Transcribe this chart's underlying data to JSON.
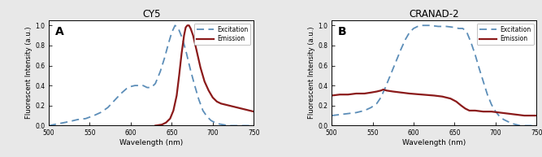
{
  "panel_A": {
    "title": "CY5",
    "label": "A",
    "xlabel": "Wavelength (nm)",
    "ylabel": "Fluorescent Intensity (a.u.)",
    "xlim": [
      500,
      750
    ],
    "ylim": [
      0,
      1.05
    ],
    "yticks": [
      0,
      0.2,
      0.4,
      0.6,
      0.8,
      1.0
    ],
    "xticks": [
      500,
      550,
      600,
      650,
      700,
      750
    ],
    "excitation_color": "#5B8DB8",
    "emission_color": "#8B1A1A",
    "excitation_points": [
      [
        500,
        0.0
      ],
      [
        525,
        0.04
      ],
      [
        535,
        0.06
      ],
      [
        545,
        0.07
      ],
      [
        555,
        0.1
      ],
      [
        563,
        0.13
      ],
      [
        572,
        0.18
      ],
      [
        580,
        0.25
      ],
      [
        588,
        0.32
      ],
      [
        595,
        0.37
      ],
      [
        600,
        0.39
      ],
      [
        605,
        0.4
      ],
      [
        610,
        0.4
      ],
      [
        615,
        0.4
      ],
      [
        620,
        0.38
      ],
      [
        625,
        0.38
      ],
      [
        630,
        0.42
      ],
      [
        636,
        0.54
      ],
      [
        641,
        0.67
      ],
      [
        646,
        0.82
      ],
      [
        650,
        0.93
      ],
      [
        654,
        1.0
      ],
      [
        658,
        0.97
      ],
      [
        663,
        0.87
      ],
      [
        668,
        0.72
      ],
      [
        673,
        0.55
      ],
      [
        678,
        0.4
      ],
      [
        683,
        0.26
      ],
      [
        688,
        0.15
      ],
      [
        693,
        0.09
      ],
      [
        698,
        0.05
      ],
      [
        705,
        0.02
      ],
      [
        712,
        0.01
      ],
      [
        720,
        0.0
      ],
      [
        750,
        0.0
      ]
    ],
    "emission_points": [
      [
        630,
        0.0
      ],
      [
        638,
        0.01
      ],
      [
        643,
        0.03
      ],
      [
        648,
        0.07
      ],
      [
        652,
        0.15
      ],
      [
        656,
        0.3
      ],
      [
        659,
        0.5
      ],
      [
        662,
        0.72
      ],
      [
        665,
        0.9
      ],
      [
        667,
        0.98
      ],
      [
        669,
        1.0
      ],
      [
        671,
        1.0
      ],
      [
        673,
        0.97
      ],
      [
        676,
        0.9
      ],
      [
        680,
        0.76
      ],
      [
        685,
        0.58
      ],
      [
        690,
        0.44
      ],
      [
        695,
        0.35
      ],
      [
        700,
        0.28
      ],
      [
        705,
        0.24
      ],
      [
        710,
        0.22
      ],
      [
        715,
        0.21
      ],
      [
        720,
        0.2
      ],
      [
        725,
        0.19
      ],
      [
        730,
        0.18
      ],
      [
        735,
        0.17
      ],
      [
        740,
        0.16
      ],
      [
        745,
        0.15
      ],
      [
        750,
        0.14
      ]
    ]
  },
  "panel_B": {
    "title": "CRANAD-2",
    "label": "B",
    "xlabel": "Wavelength (nm)",
    "ylabel": "Fluorescent Intensity (a.u.)",
    "xlim": [
      500,
      750
    ],
    "ylim": [
      0,
      1.05
    ],
    "yticks": [
      0,
      0.2,
      0.4,
      0.6,
      0.8,
      1.0
    ],
    "xticks": [
      500,
      550,
      600,
      650,
      700,
      750
    ],
    "excitation_color": "#5B8DB8",
    "emission_color": "#8B1A1A",
    "excitation_points": [
      [
        500,
        0.1
      ],
      [
        510,
        0.11
      ],
      [
        520,
        0.12
      ],
      [
        530,
        0.13
      ],
      [
        540,
        0.15
      ],
      [
        548,
        0.18
      ],
      [
        555,
        0.22
      ],
      [
        560,
        0.28
      ],
      [
        565,
        0.37
      ],
      [
        570,
        0.47
      ],
      [
        575,
        0.57
      ],
      [
        580,
        0.67
      ],
      [
        585,
        0.77
      ],
      [
        590,
        0.86
      ],
      [
        595,
        0.93
      ],
      [
        600,
        0.97
      ],
      [
        605,
        0.99
      ],
      [
        610,
        1.0
      ],
      [
        620,
        1.0
      ],
      [
        630,
        0.99
      ],
      [
        640,
        0.99
      ],
      [
        650,
        0.98
      ],
      [
        655,
        0.97
      ],
      [
        660,
        0.97
      ],
      [
        665,
        0.93
      ],
      [
        670,
        0.83
      ],
      [
        675,
        0.71
      ],
      [
        680,
        0.57
      ],
      [
        685,
        0.44
      ],
      [
        690,
        0.31
      ],
      [
        695,
        0.21
      ],
      [
        700,
        0.14
      ],
      [
        705,
        0.09
      ],
      [
        710,
        0.06
      ],
      [
        715,
        0.04
      ],
      [
        720,
        0.02
      ],
      [
        725,
        0.01
      ],
      [
        730,
        0.0
      ],
      [
        750,
        0.0
      ]
    ],
    "emission_points": [
      [
        500,
        0.3
      ],
      [
        510,
        0.31
      ],
      [
        520,
        0.31
      ],
      [
        530,
        0.32
      ],
      [
        540,
        0.32
      ],
      [
        548,
        0.33
      ],
      [
        555,
        0.34
      ],
      [
        560,
        0.35
      ],
      [
        563,
        0.36
      ],
      [
        567,
        0.35
      ],
      [
        575,
        0.34
      ],
      [
        585,
        0.33
      ],
      [
        595,
        0.32
      ],
      [
        610,
        0.31
      ],
      [
        625,
        0.3
      ],
      [
        635,
        0.29
      ],
      [
        645,
        0.27
      ],
      [
        652,
        0.24
      ],
      [
        658,
        0.2
      ],
      [
        663,
        0.17
      ],
      [
        668,
        0.15
      ],
      [
        675,
        0.15
      ],
      [
        685,
        0.14
      ],
      [
        695,
        0.14
      ],
      [
        705,
        0.13
      ],
      [
        715,
        0.12
      ],
      [
        725,
        0.11
      ],
      [
        735,
        0.1
      ],
      [
        745,
        0.1
      ],
      [
        750,
        0.1
      ]
    ]
  },
  "legend_excitation_label": "Excitation",
  "legend_emission_label": "Emission",
  "background_color": "#FFFFFF",
  "figure_bg": "#E8E8E8"
}
